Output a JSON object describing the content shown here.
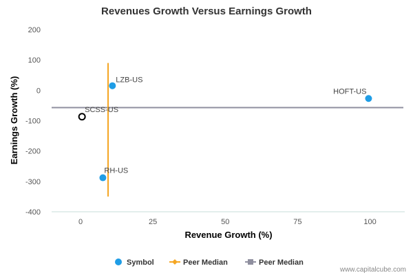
{
  "chart_data": {
    "type": "scatter",
    "title": "Revenues Growth Versus Earnings Growth",
    "xlabel": "Revenue Growth (%)",
    "ylabel": "Earnings Growth (%)",
    "xlim": [
      -10,
      112
    ],
    "ylim": [
      -400,
      200
    ],
    "x_ticks": [
      0,
      25,
      50,
      75,
      100
    ],
    "y_ticks": [
      200,
      100,
      0,
      -100,
      -200,
      -300,
      -400
    ],
    "points": [
      {
        "name": "LZB-US",
        "x": 11,
        "y": 15,
        "type": "peer"
      },
      {
        "name": "HOFT-US",
        "x": 99.5,
        "y": -27,
        "type": "peer"
      },
      {
        "name": "SCSS-US",
        "x": 0.5,
        "y": -87,
        "type": "focus"
      },
      {
        "name": "RH-US",
        "x": 7.7,
        "y": -288,
        "type": "peer"
      }
    ],
    "peer_median_revenue": 9.5,
    "peer_median_revenue_y_range": [
      90,
      -350
    ],
    "peer_median_earnings": -57,
    "legend": [
      {
        "label": "Symbol",
        "marker": "circle",
        "color": "#1f9de6"
      },
      {
        "label": "Peer Median",
        "marker": "diamond-line",
        "color": "#f5a623"
      },
      {
        "label": "Peer Median",
        "marker": "square-line",
        "color": "#8f8f9f"
      }
    ],
    "colors": {
      "peer": "#1f9de6",
      "focus_stroke": "#000000",
      "median_revenue": "#f5a623",
      "median_earnings": "#8f8f9f",
      "baseline": "#c7dcd8"
    }
  },
  "watermark": "www.capitalcube.com"
}
